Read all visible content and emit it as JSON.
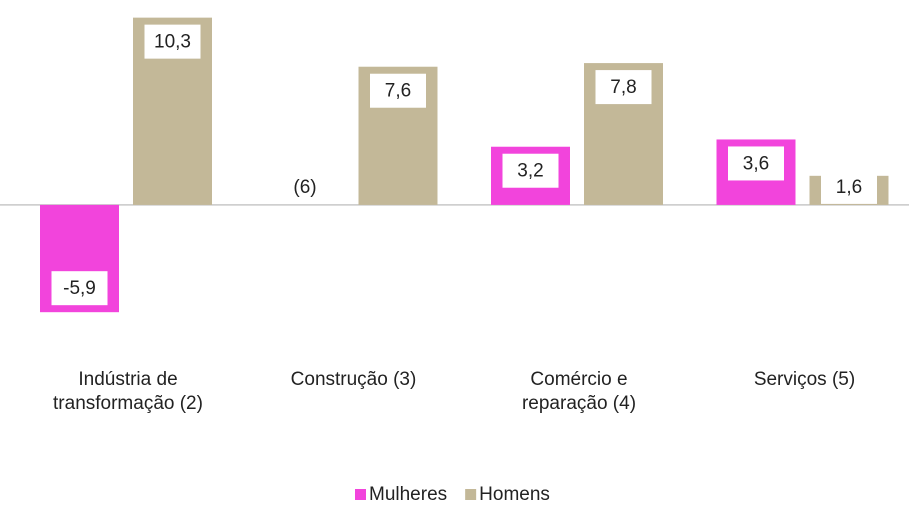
{
  "chart_data": {
    "type": "bar",
    "categories": [
      "Indústria de transformação (2)",
      "Construção (3)",
      "Comércio e reparação (4)",
      "Serviços (5)"
    ],
    "series": [
      {
        "name": "Mulheres",
        "color": "#f244dc",
        "values": [
          -5.9,
          null,
          3.2,
          3.6
        ],
        "value_labels": [
          "-5,9",
          "(6)",
          "3,2",
          "3,6"
        ]
      },
      {
        "name": "Homens",
        "color": "#c3b898",
        "values": [
          10.3,
          7.6,
          7.8,
          1.6
        ],
        "value_labels": [
          "10,3",
          "7,6",
          "7,8",
          "1,6"
        ]
      }
    ],
    "ylim": [
      -6,
      10.5
    ],
    "grid": false,
    "legend": "bottom"
  }
}
